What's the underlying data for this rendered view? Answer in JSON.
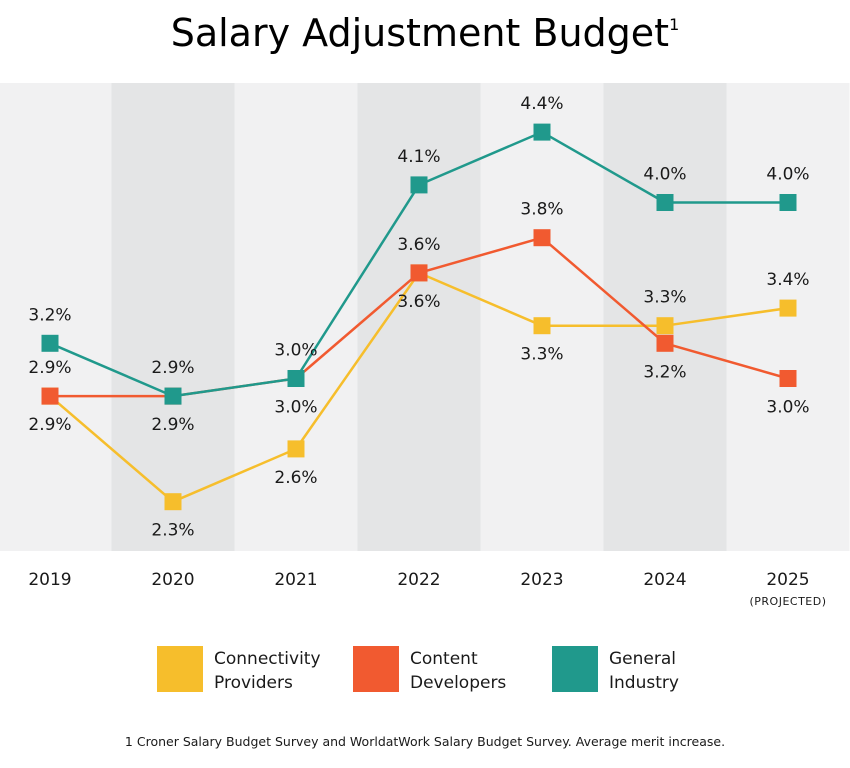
{
  "chart_data": {
    "type": "line",
    "title": "Salary Adjustment Budget",
    "title_footnote_marker": "1",
    "categories": [
      "2019",
      "2020",
      "2021",
      "2022",
      "2023",
      "2024",
      "2025"
    ],
    "category_sublabels": [
      "",
      "",
      "",
      "",
      "",
      "",
      "(PROJECTED)"
    ],
    "ylim": [
      2.0,
      4.6
    ],
    "unit": "%",
    "series": [
      {
        "name": "Connectivity Providers",
        "legend_lines": [
          "Connectivity",
          "Providers"
        ],
        "color": "#F6BE2C",
        "values": [
          2.9,
          2.3,
          2.6,
          3.6,
          3.3,
          3.3,
          3.4
        ],
        "labels": [
          "2.9%",
          "2.3%",
          "2.6%",
          "3.6%",
          "3.3%",
          "3.3%",
          "3.4%"
        ],
        "label_side": [
          "below",
          "below",
          "below",
          "below",
          "below",
          "above",
          "above"
        ]
      },
      {
        "name": "Content Developers",
        "legend_lines": [
          "Content",
          "Developers"
        ],
        "color": "#F15A30",
        "values": [
          2.9,
          2.9,
          3.0,
          3.6,
          3.8,
          3.2,
          3.0
        ],
        "labels": [
          "2.9%",
          "",
          "",
          "3.6%",
          "3.8%",
          "3.2%",
          "3.0%"
        ],
        "label_side": [
          "above",
          "none",
          "none",
          "above",
          "above",
          "below",
          "below"
        ]
      },
      {
        "name": "General Industry",
        "legend_lines": [
          "General",
          "Industry"
        ],
        "color": "#20998C",
        "values": [
          3.2,
          2.9,
          3.0,
          4.1,
          4.4,
          4.0,
          4.0
        ],
        "labels": [
          "3.2%",
          "2.9%",
          "3.0%",
          "4.1%",
          "4.4%",
          "4.0%",
          "4.0%"
        ],
        "label_side": [
          "above",
          "above",
          "above",
          "above",
          "above",
          "above",
          "above"
        ]
      }
    ],
    "extra_labels": [
      {
        "category_index": 1,
        "text": "2.9%",
        "side": "below",
        "value": 2.9
      },
      {
        "category_index": 2,
        "text": "3.0%",
        "side": "below",
        "value": 3.0
      }
    ],
    "band_colors": [
      "#F1F1F2",
      "#E4E5E6"
    ],
    "footnote": "1 Croner Salary Budget Survey and WorldatWork Salary Budget Survey. Average merit increase."
  }
}
